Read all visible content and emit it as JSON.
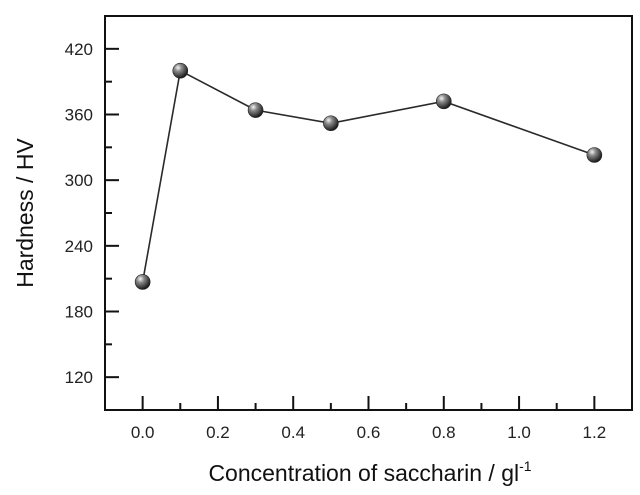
{
  "chart_data": {
    "type": "line",
    "title": "",
    "xlabel": "Concentration of saccharin / gl",
    "xlabel_superscript": "-1",
    "ylabel": "Hardness / HV",
    "x": [
      0.0,
      0.1,
      0.3,
      0.5,
      0.8,
      1.2
    ],
    "series": [
      {
        "values": [
          207,
          400,
          364,
          352,
          372,
          323
        ],
        "marker": "sphere",
        "color": "#2a2a2a"
      }
    ],
    "xlim": [
      -0.1,
      1.3
    ],
    "ylim": [
      90,
      450
    ],
    "x_ticks": [
      "0.0",
      "0.2",
      "0.4",
      "0.6",
      "0.8",
      "1.0",
      "1.2"
    ],
    "y_ticks": [
      "120",
      "180",
      "240",
      "300",
      "360",
      "420"
    ],
    "grid": false,
    "legend": "none"
  }
}
